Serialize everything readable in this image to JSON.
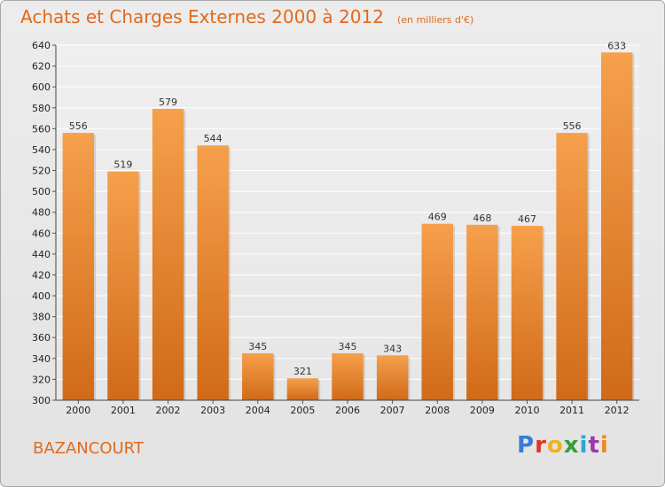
{
  "header": {
    "title": "Achats et Charges Externes 2000 à 2012",
    "subtitle": "(en milliers d'€)"
  },
  "footer": {
    "commune": "BAZANCOURT",
    "brand": "Proxiti"
  },
  "colors": {
    "bar_light": "#f6a04c",
    "bar_dark": "#d06a18",
    "title": "#e26a1c",
    "brand_letters": [
      "#3a7bd5",
      "#e2342b",
      "#f0b31a",
      "#3a9b3a",
      "#2aa7d8",
      "#9b3aa8",
      "#f08a1a"
    ]
  },
  "chart_data": {
    "type": "bar",
    "title": "Achats et Charges Externes 2000 à 2012",
    "subtitle": "(en milliers d'€)",
    "categories": [
      "2000",
      "2001",
      "2002",
      "2003",
      "2004",
      "2005",
      "2006",
      "2007",
      "2008",
      "2009",
      "2010",
      "2011",
      "2012"
    ],
    "values": [
      556,
      519,
      579,
      544,
      345,
      321,
      345,
      343,
      469,
      468,
      467,
      556,
      633
    ],
    "ylim": [
      300,
      640
    ],
    "yticks": [
      300,
      320,
      340,
      360,
      380,
      400,
      420,
      440,
      460,
      480,
      500,
      520,
      540,
      560,
      580,
      600,
      620,
      640
    ],
    "grid": true,
    "xlabel": "",
    "ylabel": ""
  }
}
